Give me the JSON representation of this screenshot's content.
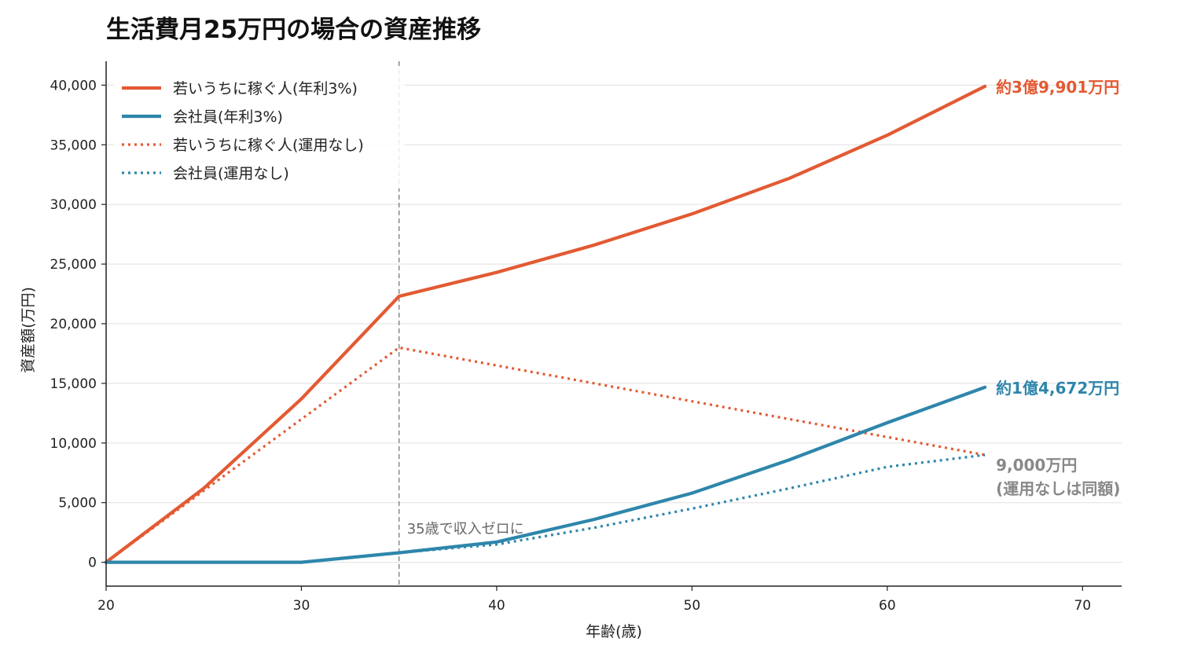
{
  "chart_data": {
    "type": "line",
    "title": "生活費月25万円の場合の資産推移",
    "xlabel": "年齢(歳)",
    "ylabel": "資産額(万円)",
    "xlim": [
      20,
      72
    ],
    "ylim": [
      -2000,
      42000
    ],
    "x_ticks": [
      20,
      30,
      40,
      50,
      60,
      70
    ],
    "y_ticks": [
      0,
      5000,
      10000,
      15000,
      20000,
      25000,
      30000,
      35000,
      40000
    ],
    "y_tick_labels": [
      "0",
      "5,000",
      "10,000",
      "15,000",
      "20,000",
      "25,000",
      "30,000",
      "35,000",
      "40,000"
    ],
    "grid": "horizontal",
    "legend_position": "top-left",
    "colors": {
      "young": "#e35a33",
      "employee": "#2e86ab",
      "muted": "#888888"
    },
    "series": [
      {
        "name": "若いうちに稼ぐ人(年利3%)",
        "color": "#e35a33",
        "style": "solid",
        "points": [
          [
            20,
            0
          ],
          [
            25,
            6200
          ],
          [
            30,
            13700
          ],
          [
            35,
            22300
          ],
          [
            40,
            24300
          ],
          [
            45,
            26600
          ],
          [
            50,
            29200
          ],
          [
            55,
            32200
          ],
          [
            60,
            35800
          ],
          [
            65,
            39901
          ]
        ]
      },
      {
        "name": "会社員(年利3%)",
        "color": "#2e86ab",
        "style": "solid",
        "points": [
          [
            20,
            0
          ],
          [
            30,
            0
          ],
          [
            35,
            800
          ],
          [
            40,
            1700
          ],
          [
            45,
            3600
          ],
          [
            50,
            5800
          ],
          [
            55,
            8600
          ],
          [
            60,
            11700
          ],
          [
            65,
            14672
          ]
        ]
      },
      {
        "name": "若いうちに稼ぐ人(運用なし)",
        "color": "#e35a33",
        "style": "dotted",
        "points": [
          [
            20,
            0
          ],
          [
            35,
            18000
          ],
          [
            65,
            9000
          ]
        ]
      },
      {
        "name": "会社員(運用なし)",
        "color": "#2e86ab",
        "style": "dotted",
        "points": [
          [
            20,
            0
          ],
          [
            30,
            0
          ],
          [
            35,
            800
          ],
          [
            40,
            1500
          ],
          [
            45,
            2900
          ],
          [
            50,
            4500
          ],
          [
            55,
            6200
          ],
          [
            60,
            8000
          ],
          [
            65,
            9000
          ]
        ]
      }
    ],
    "vline": {
      "x": 35,
      "label": "35歳で収入ゼロに"
    },
    "end_labels": [
      {
        "text": "約3億9,901万円",
        "y": 39901,
        "color": "#e35a33"
      },
      {
        "text": "約1億4,672万円",
        "y": 14672,
        "color": "#2e86ab"
      },
      {
        "text": "9,000万円",
        "y": 9000,
        "color": "#888888"
      },
      {
        "text": "(運用なしは同額)",
        "y": 9000,
        "color": "#888888"
      }
    ]
  }
}
